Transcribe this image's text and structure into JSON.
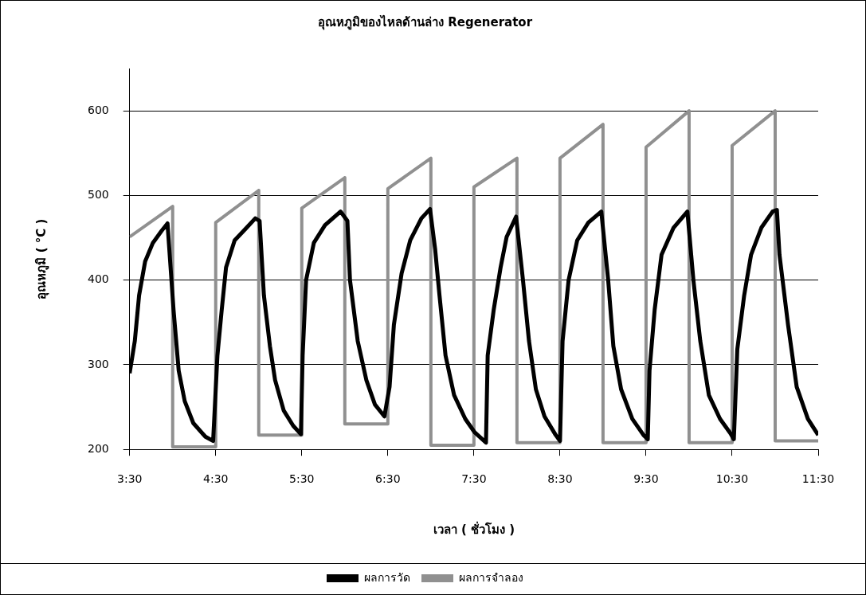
{
  "chart_data": {
    "type": "line",
    "title": "อุณหภูมิของไหลด้านล่าง Regenerator",
    "xlabel": "เวลา ( ชั่วโมง )",
    "ylabel": "อุณหภูมิ ( °C )",
    "xlim": [
      3.5,
      11.5
    ],
    "xticks": [
      {
        "value": 3.5,
        "label": "3:30"
      },
      {
        "value": 4.5,
        "label": "4:30"
      },
      {
        "value": 5.5,
        "label": "5:30"
      },
      {
        "value": 6.5,
        "label": "6:30"
      },
      {
        "value": 7.5,
        "label": "7:30"
      },
      {
        "value": 8.5,
        "label": "8:30"
      },
      {
        "value": 9.5,
        "label": "9:30"
      },
      {
        "value": 10.5,
        "label": "10:30"
      },
      {
        "value": 11.5,
        "label": "11:30"
      }
    ],
    "ylim": [
      200,
      650
    ],
    "yticks": [
      200,
      300,
      400,
      500,
      600
    ],
    "grid": "y",
    "legend": "bottom",
    "marker": "none",
    "line_style": "solid",
    "series": [
      {
        "name": "ผลการวัด",
        "color": "#000000",
        "x": [
          3.5,
          3.56,
          3.61,
          3.68,
          3.77,
          3.87,
          3.94,
          4.01,
          4.07,
          4.14,
          4.24,
          4.38,
          4.47,
          4.52,
          4.57,
          4.62,
          4.72,
          4.86,
          4.96,
          5.01,
          5.06,
          5.13,
          5.19,
          5.29,
          5.4,
          5.49,
          5.51,
          5.55,
          5.64,
          5.77,
          5.95,
          6.03,
          6.06,
          6.15,
          6.25,
          6.35,
          6.46,
          6.52,
          6.57,
          6.66,
          6.76,
          6.89,
          6.99,
          7.05,
          7.1,
          7.17,
          7.27,
          7.4,
          7.51,
          7.64,
          7.66,
          7.73,
          7.81,
          7.88,
          7.99,
          8.07,
          8.14,
          8.22,
          8.32,
          8.45,
          8.5,
          8.53,
          8.6,
          8.7,
          8.83,
          8.98,
          9.06,
          9.12,
          9.21,
          9.34,
          9.47,
          9.52,
          9.54,
          9.6,
          9.68,
          9.82,
          9.98,
          10.05,
          10.13,
          10.23,
          10.36,
          10.48,
          10.52,
          10.56,
          10.64,
          10.72,
          10.84,
          10.97,
          11.02,
          11.05,
          11.15,
          11.25,
          11.38,
          11.5
        ],
        "values": [
          290,
          328,
          382,
          422,
          444,
          458,
          467,
          365,
          293,
          257,
          231,
          215,
          210,
          311,
          365,
          415,
          447,
          462,
          473,
          470,
          382,
          322,
          282,
          246,
          228,
          218,
          311,
          400,
          444,
          465,
          481,
          470,
          400,
          328,
          282,
          253,
          239,
          274,
          347,
          408,
          447,
          473,
          484,
          436,
          382,
          311,
          264,
          236,
          220,
          208,
          311,
          365,
          415,
          451,
          475,
          400,
          328,
          271,
          239,
          217,
          210,
          328,
          400,
          447,
          468,
          481,
          400,
          322,
          271,
          236,
          217,
          212,
          293,
          365,
          430,
          462,
          481,
          400,
          328,
          264,
          236,
          219,
          212,
          318,
          382,
          430,
          462,
          481,
          483,
          430,
          347,
          274,
          236,
          217
        ]
      },
      {
        "name": "ผลการจำลอง",
        "color": "#909090",
        "x": [
          3.5,
          4.0,
          4.0,
          4.5,
          4.5,
          5.0,
          5.0,
          5.5,
          5.5,
          6.0,
          6.0,
          6.5,
          6.5,
          7.0,
          7.0,
          7.5,
          7.5,
          8.0,
          8.0,
          8.5,
          8.5,
          9.0,
          9.0,
          9.5,
          9.5,
          10.0,
          10.0,
          10.5,
          10.5,
          11.0,
          11.0,
          11.5
        ],
        "values": [
          451,
          487,
          203,
          203,
          468,
          506,
          217,
          217,
          485,
          521,
          230,
          230,
          508,
          544,
          205,
          205,
          510,
          544,
          208,
          208,
          544,
          584,
          208,
          208,
          557,
          600,
          208,
          208,
          559,
          600,
          210,
          210
        ]
      }
    ]
  }
}
